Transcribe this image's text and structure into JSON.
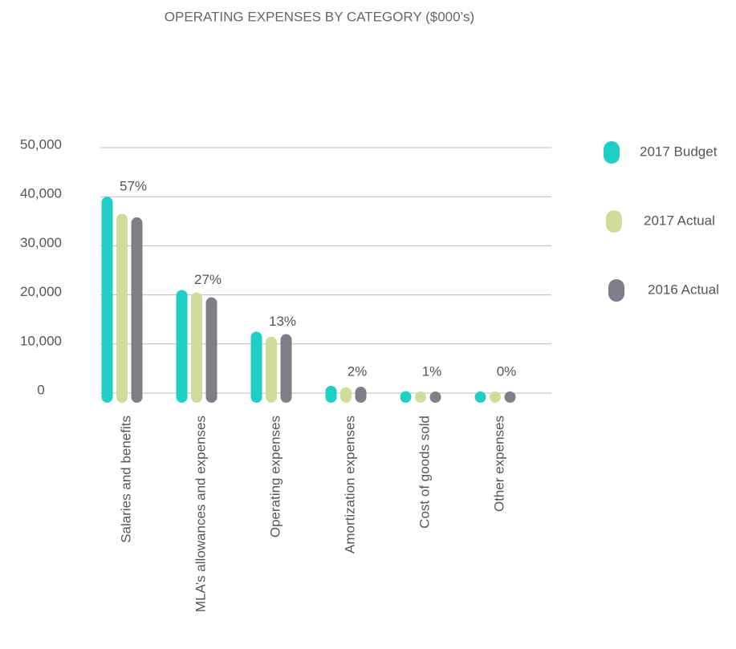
{
  "chart_data": {
    "type": "bar",
    "title": "OPERATING EXPENSES BY CATEGORY ($000’s)",
    "categories": [
      "Salaries and benefits",
      "MLA’s allowances and expenses",
      "Operating expenses",
      "Amortization expenses",
      "Cost of goods sold",
      "Other expenses"
    ],
    "category_labels": [
      "57%",
      "27%",
      "13%",
      "2%",
      "1%",
      "0%"
    ],
    "series": [
      {
        "name": "2017 Budget",
        "color": "#1fcfc6",
        "values": [
          40000,
          21000,
          12500,
          1500,
          400,
          0
        ]
      },
      {
        "name": "2017 Actual",
        "color": "#cfdc9b",
        "values": [
          36500,
          20500,
          11500,
          1200,
          300,
          0
        ]
      },
      {
        "name": "2016 Actual",
        "color": "#7e7f86",
        "values": [
          35800,
          19500,
          12000,
          1300,
          200,
          0
        ]
      }
    ],
    "ylim": [
      0,
      50000
    ],
    "yticks": [
      0,
      {
        "value": 10000,
        "label": "10,000"
      },
      {
        "value": 20000,
        "label": "20,000"
      },
      {
        "value": 30000,
        "label": "30,000"
      },
      {
        "value": 40000,
        "label": "40,000"
      },
      {
        "value": 50000,
        "label": "50,000"
      }
    ],
    "grid": true,
    "legend": "right"
  }
}
